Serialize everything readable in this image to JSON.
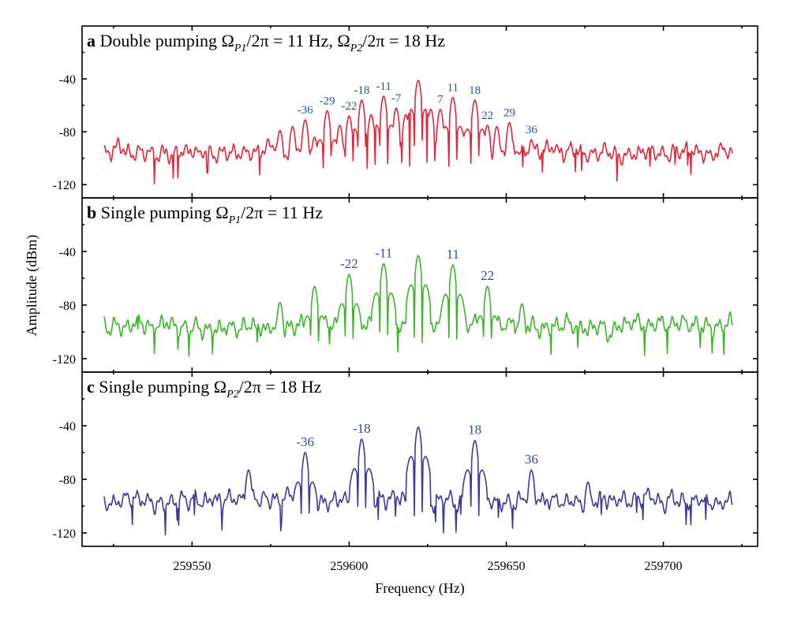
{
  "chart_data": [
    {
      "type": "line",
      "panel_letter": "a",
      "title_parts": [
        "Double pumping Ω",
        "P1",
        "/2π = 11 Hz, Ω",
        "P2",
        "/2π = 18 Hz"
      ],
      "color": "#e3263a",
      "ylim": [
        -130,
        0
      ],
      "yticks": [
        -40,
        -80,
        -120
      ],
      "noise_floor_dBm": -96,
      "carrier_Hz": 259622,
      "peaks": [
        {
          "offset": 0,
          "amp": -41
        },
        {
          "offset": -7,
          "amp": -62,
          "label": "-7"
        },
        {
          "offset": 7,
          "amp": -63,
          "label": "7"
        },
        {
          "offset": -11,
          "amp": -53,
          "label": "-11"
        },
        {
          "offset": 11,
          "amp": -54,
          "label": "11"
        },
        {
          "offset": -18,
          "amp": -56,
          "label": "-18"
        },
        {
          "offset": 18,
          "amp": -56,
          "label": "18"
        },
        {
          "offset": -22,
          "amp": -68,
          "label": "-22"
        },
        {
          "offset": 22,
          "amp": -75,
          "label": "22"
        },
        {
          "offset": -29,
          "amp": -64,
          "label": "-29"
        },
        {
          "offset": 29,
          "amp": -73,
          "label": "29"
        },
        {
          "offset": -36,
          "amp": -71,
          "label": "-36"
        },
        {
          "offset": 36,
          "amp": -86,
          "label": "36"
        },
        {
          "offset": -4,
          "amp": -67
        },
        {
          "offset": 4,
          "amp": -63
        },
        {
          "offset": -15,
          "amp": -67
        },
        {
          "offset": 15,
          "amp": -80
        },
        {
          "offset": -25,
          "amp": -75
        },
        {
          "offset": 25,
          "amp": -76
        },
        {
          "offset": -33,
          "amp": -84
        },
        {
          "offset": -40,
          "amp": -76
        },
        {
          "offset": -44,
          "amp": -79
        }
      ]
    },
    {
      "type": "line",
      "panel_letter": "b",
      "title_parts": [
        "Single pumping Ω",
        "P1",
        "/2π = 11 Hz",
        "",
        ""
      ],
      "color": "#3db52a",
      "ylim": [
        -130,
        0
      ],
      "yticks": [
        -40,
        -80,
        -120
      ],
      "noise_floor_dBm": -96,
      "carrier_Hz": 259622,
      "peaks": [
        {
          "offset": 0,
          "amp": -43
        },
        {
          "offset": -11,
          "amp": -49,
          "label": "-11"
        },
        {
          "offset": 11,
          "amp": -50,
          "label": "11"
        },
        {
          "offset": -22,
          "amp": -57,
          "label": "-22"
        },
        {
          "offset": 22,
          "amp": -66,
          "label": "22"
        },
        {
          "offset": -33,
          "amp": -66
        },
        {
          "offset": 33,
          "amp": -79
        },
        {
          "offset": -44,
          "amp": -78
        }
      ]
    },
    {
      "type": "line",
      "panel_letter": "c",
      "title_parts": [
        "Single pumping Ω",
        "P2",
        "/2π = 18 Hz",
        "",
        ""
      ],
      "color": "#3d3a9a",
      "ylim": [
        -130,
        0
      ],
      "yticks": [
        -40,
        -80,
        -120
      ],
      "noise_floor_dBm": -96,
      "carrier_Hz": 259622,
      "peaks": [
        {
          "offset": 0,
          "amp": -41
        },
        {
          "offset": -18,
          "amp": -50,
          "label": "-18"
        },
        {
          "offset": 18,
          "amp": -51,
          "label": "18"
        },
        {
          "offset": -36,
          "amp": -60,
          "label": "-36"
        },
        {
          "offset": 36,
          "amp": -73,
          "label": "36"
        },
        {
          "offset": -54,
          "amp": -73
        },
        {
          "offset": 54,
          "amp": -82
        }
      ]
    }
  ],
  "axes": {
    "xlabel": "Frequency (Hz)",
    "ylabel": "Amplitude (dBm)",
    "xlim": [
      259515,
      259730
    ],
    "data_range": [
      259522,
      259722
    ],
    "xticks": [
      259550,
      259600,
      259650,
      259700
    ],
    "label_color": "#2b50a0"
  }
}
